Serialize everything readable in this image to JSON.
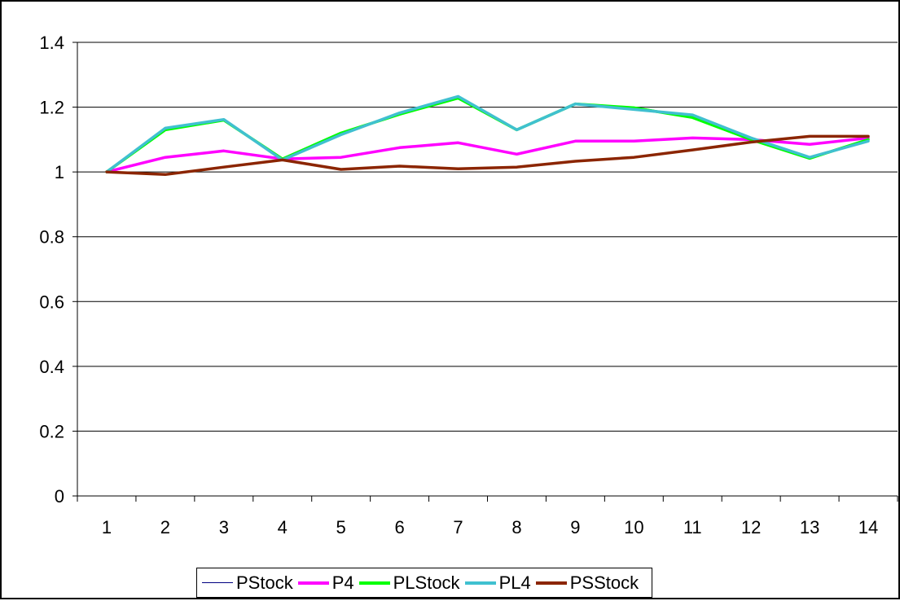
{
  "chart_data": {
    "type": "line",
    "title": "",
    "xlabel": "",
    "ylabel": "",
    "categories": [
      "1",
      "2",
      "3",
      "4",
      "5",
      "6",
      "7",
      "8",
      "9",
      "10",
      "11",
      "12",
      "13",
      "14"
    ],
    "ylim": [
      0,
      1.4
    ],
    "yticks": [
      "0",
      "0.2",
      "0.4",
      "0.6",
      "0.8",
      "1",
      "1.2",
      "1.4"
    ],
    "grid": "horizontal",
    "legend": "bottom",
    "series": [
      {
        "name": "PStock",
        "color": "#000080",
        "width": "thin",
        "values": [
          1.0,
          1.13,
          1.16,
          1.04,
          1.12,
          1.18,
          1.23,
          1.13,
          1.21,
          1.2,
          1.17,
          1.1,
          1.045,
          1.1
        ]
      },
      {
        "name": "P4",
        "color": "#ff00ff",
        "width": "thick",
        "values": [
          1.0,
          1.045,
          1.065,
          1.04,
          1.045,
          1.075,
          1.09,
          1.055,
          1.095,
          1.095,
          1.105,
          1.1,
          1.085,
          1.105
        ]
      },
      {
        "name": "PLStock",
        "color": "#00ff00",
        "width": "thick",
        "values": [
          1.0,
          1.13,
          1.16,
          1.04,
          1.12,
          1.178,
          1.228,
          1.13,
          1.21,
          1.198,
          1.168,
          1.1,
          1.042,
          1.1
        ]
      },
      {
        "name": "PL4",
        "color": "#40c0d0",
        "width": "thick",
        "values": [
          1.0,
          1.135,
          1.162,
          1.037,
          1.115,
          1.182,
          1.233,
          1.13,
          1.21,
          1.193,
          1.176,
          1.105,
          1.045,
          1.095
        ]
      },
      {
        "name": "PSStock",
        "color": "#8b2500",
        "width": "thick",
        "values": [
          1.0,
          0.992,
          1.015,
          1.037,
          1.008,
          1.018,
          1.01,
          1.015,
          1.033,
          1.045,
          1.068,
          1.092,
          1.11,
          1.11
        ]
      }
    ]
  }
}
